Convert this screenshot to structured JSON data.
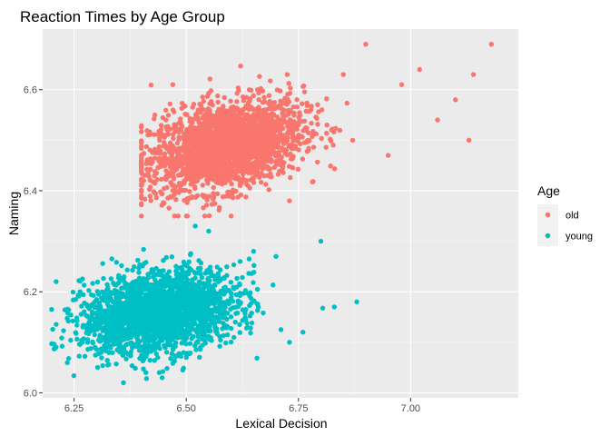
{
  "chart_data": {
    "type": "scatter",
    "title": "Reaction Times by Age Group",
    "xlabel": "Lexical Decision",
    "ylabel": "Naming",
    "xlim": [
      6.18,
      7.24
    ],
    "ylim": [
      5.99,
      6.72
    ],
    "x_ticks": [
      6.25,
      6.5,
      6.75,
      7.0
    ],
    "y_ticks": [
      6.0,
      6.2,
      6.4,
      6.6
    ],
    "x_tick_labels": [
      "6.25",
      "6.50",
      "6.75",
      "7.00"
    ],
    "y_tick_labels": [
      "6.0",
      "6.2",
      "6.4",
      "6.6"
    ],
    "grid": true,
    "legend": {
      "title": "Age",
      "position": "right"
    },
    "series": [
      {
        "name": "old",
        "color": "#F8766D",
        "n_points": 2284,
        "center": [
          6.59,
          6.49
        ],
        "spread": [
          0.085,
          0.045
        ],
        "correlation": 0.35,
        "x_range": [
          6.4,
          7.18
        ],
        "y_range": [
          6.35,
          6.69
        ],
        "sample_points": [
          [
            6.4,
            6.42
          ],
          [
            6.43,
            6.55
          ],
          [
            6.47,
            6.61
          ],
          [
            7.18,
            6.69
          ],
          [
            7.14,
            6.63
          ],
          [
            7.1,
            6.58
          ],
          [
            7.13,
            6.5
          ],
          [
            7.06,
            6.54
          ],
          [
            6.98,
            6.61
          ],
          [
            6.9,
            6.69
          ],
          [
            6.6,
            6.35
          ],
          [
            6.73,
            6.38
          ],
          [
            6.85,
            6.63
          ],
          [
            6.95,
            6.47
          ],
          [
            7.02,
            6.64
          ]
        ]
      },
      {
        "name": "young",
        "color": "#00BFC4",
        "n_points": 2284,
        "center": [
          6.44,
          6.16
        ],
        "spread": [
          0.085,
          0.04
        ],
        "correlation": 0.25,
        "x_range": [
          6.2,
          6.88
        ],
        "y_range": [
          6.02,
          6.33
        ],
        "sample_points": [
          [
            6.21,
            6.22
          ],
          [
            6.21,
            6.09
          ],
          [
            6.36,
            6.02
          ],
          [
            6.52,
            6.33
          ],
          [
            6.55,
            6.32
          ],
          [
            6.8,
            6.3
          ],
          [
            6.88,
            6.18
          ],
          [
            6.83,
            6.17
          ],
          [
            6.73,
            6.1
          ],
          [
            6.76,
            6.12
          ],
          [
            6.65,
            6.28
          ],
          [
            6.7,
            6.27
          ],
          [
            6.44,
            6.04
          ],
          [
            6.41,
            6.04
          ],
          [
            6.62,
            6.26
          ]
        ]
      }
    ]
  }
}
